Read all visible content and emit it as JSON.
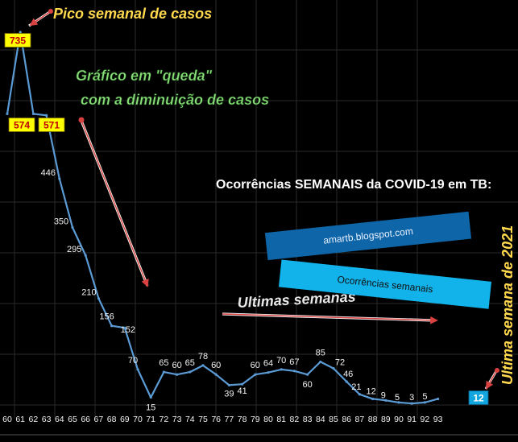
{
  "chart_data": {
    "type": "line",
    "title": "Ocorrências SEMANAIS da COVID-19 em TB:",
    "x": [
      60,
      61,
      62,
      63,
      64,
      65,
      66,
      67,
      68,
      69,
      70,
      71,
      72,
      73,
      74,
      75,
      76,
      77,
      78,
      79,
      80,
      81,
      82,
      83,
      84,
      85,
      86,
      87,
      88,
      89,
      90,
      91,
      92,
      93
    ],
    "series": [
      {
        "name": "Ocorrências semanais",
        "values": [
          574,
          735,
          574,
          571,
          446,
          350,
          295,
          210,
          156,
          152,
          70,
          15,
          65,
          60,
          65,
          78,
          60,
          39,
          41,
          60,
          64,
          70,
          67,
          60,
          85,
          72,
          46,
          21,
          12,
          9,
          5,
          3,
          5,
          12
        ]
      }
    ],
    "ylim": [
      0,
      800
    ],
    "grid": true,
    "legend": "center-right",
    "color": "#5b9bd5",
    "annotations": {
      "peak": "Pico semanal de casos",
      "fall_line1": "Gráfico em \"queda\"",
      "fall_line2": "com a diminuição de casos",
      "last_weeks": "Ultimas semanas",
      "last_week_2021": "Ultima semana de 2021",
      "blog": "amartb.blogspot.com"
    }
  }
}
